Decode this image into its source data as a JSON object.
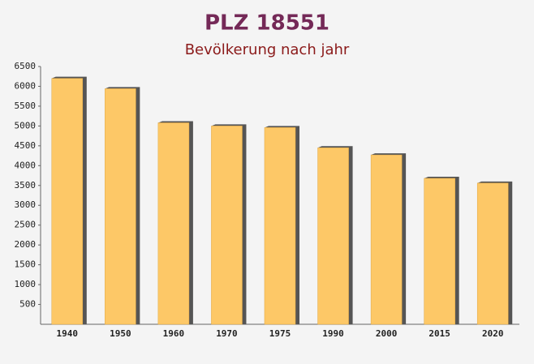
{
  "chart_data": {
    "type": "bar",
    "title": "PLZ 18551",
    "subtitle": "Bevölkerung nach jahr",
    "categories": [
      "1940",
      "1950",
      "1960",
      "1970",
      "1975",
      "1990",
      "2000",
      "2015",
      "2020"
    ],
    "values": [
      6200,
      5940,
      5080,
      5000,
      4960,
      4450,
      4270,
      3680,
      3560
    ],
    "color": "#fdc867",
    "ylim": [
      0,
      6500
    ],
    "yticks": [
      500,
      1000,
      1500,
      2000,
      2500,
      3000,
      3500,
      4000,
      4500,
      5000,
      5500,
      6000,
      6500
    ],
    "grid": false
  }
}
